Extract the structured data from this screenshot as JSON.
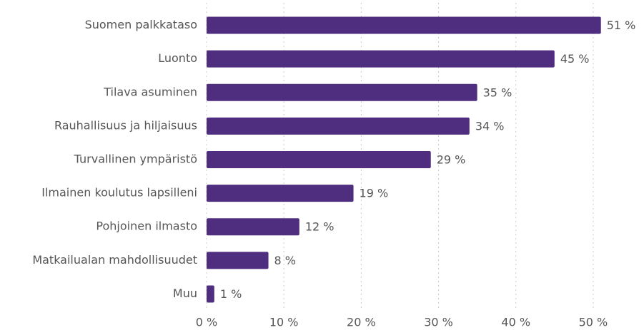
{
  "chart_data": {
    "type": "barh",
    "categories": [
      "Suomen palkkataso",
      "Luonto",
      "Tilava asuminen",
      "Rauhallisuus ja hiljaisuus",
      "Turvallinen ympäristö",
      "Ilmainen koulutus lapsilleni",
      "Pohjoinen ilmasto",
      "Matkailualan mahdollisuudet",
      "Muu"
    ],
    "values": [
      51,
      45,
      35,
      34,
      29,
      19,
      12,
      8,
      1
    ],
    "value_labels": [
      "51 %",
      "45 %",
      "35 %",
      "34 %",
      "29 %",
      "19 %",
      "12 %",
      "8 %",
      "1 %"
    ],
    "color": "#4f2d7f",
    "xlim": [
      0,
      55
    ],
    "xticks": [
      {
        "value": 0,
        "label": "0 %"
      },
      {
        "value": 10,
        "label": "10 %"
      },
      {
        "value": 20,
        "label": "20 %"
      },
      {
        "value": 30,
        "label": "30 %"
      },
      {
        "value": 40,
        "label": "40 %"
      },
      {
        "value": 50,
        "label": "50 %"
      }
    ],
    "grid": true
  }
}
